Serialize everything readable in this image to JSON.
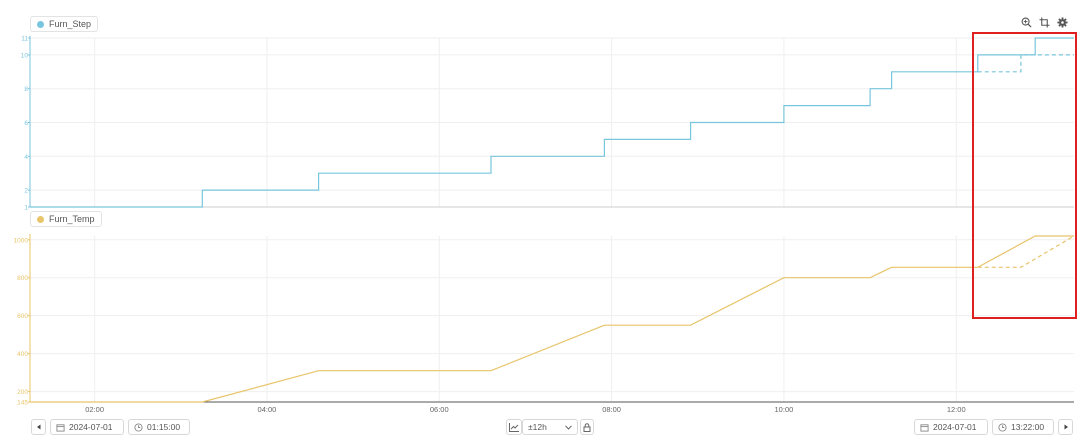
{
  "charts": {
    "top": {
      "series_name": "Furn_Step",
      "color": "#78c6dd"
    },
    "bottom": {
      "series_name": "Furn_Temp",
      "color": "#e8c46a"
    }
  },
  "toolbar": {
    "zoom_icon": "zoom-in-icon",
    "crop_icon": "crop-icon",
    "settings_icon": "gear-icon"
  },
  "controls": {
    "start_date": "2024-07-01",
    "start_time": "01:15:00",
    "range": "±12h",
    "end_date": "2024-07-01",
    "end_time": "13:22:00"
  },
  "highlight_color": "#e02020",
  "chart_data": [
    {
      "type": "line",
      "x_unit": "time",
      "x_ticks": [
        "02:00",
        "04:00",
        "06:00",
        "08:00",
        "10:00",
        "12:00"
      ],
      "x_range": [
        "01:15",
        "13:22"
      ],
      "y_ticks": [
        "1",
        "2",
        "4",
        "6",
        "8",
        "10",
        "11"
      ],
      "ylim": [
        1,
        11
      ],
      "series": [
        {
          "name": "Furn_Step",
          "style": "solid",
          "points": [
            [
              "01:15",
              1
            ],
            [
              "03:15",
              1
            ],
            [
              "03:15",
              2
            ],
            [
              "04:36",
              2
            ],
            [
              "04:36",
              3
            ],
            [
              "06:36",
              3
            ],
            [
              "06:36",
              4
            ],
            [
              "07:55",
              4
            ],
            [
              "07:55",
              5
            ],
            [
              "08:55",
              5
            ],
            [
              "08:55",
              6
            ],
            [
              "10:00",
              6
            ],
            [
              "10:00",
              7
            ],
            [
              "11:00",
              7
            ],
            [
              "11:00",
              8
            ],
            [
              "11:15",
              8
            ],
            [
              "11:15",
              9
            ],
            [
              "12:15",
              9
            ],
            [
              "12:15",
              10
            ],
            [
              "12:55",
              10
            ],
            [
              "12:55",
              11
            ],
            [
              "13:22",
              11
            ]
          ]
        },
        {
          "style": "dashed",
          "points": [
            [
              "12:15",
              9
            ],
            [
              "12:45",
              9
            ],
            [
              "12:45",
              10
            ],
            [
              "13:22",
              10
            ]
          ]
        }
      ]
    },
    {
      "type": "line",
      "x_unit": "time",
      "x_ticks": [
        "02:00",
        "04:00",
        "06:00",
        "08:00",
        "10:00",
        "12:00"
      ],
      "x_range": [
        "01:15",
        "13:22"
      ],
      "y_ticks": [
        "145",
        "200",
        "400",
        "600",
        "800",
        "1000"
      ],
      "ylim": [
        145,
        1020
      ],
      "series": [
        {
          "name": "Furn_Temp",
          "style": "solid",
          "points": [
            [
              "01:15",
              145
            ],
            [
              "03:15",
              145
            ],
            [
              "04:36",
              310
            ],
            [
              "06:36",
              310
            ],
            [
              "07:55",
              550
            ],
            [
              "08:55",
              550
            ],
            [
              "10:00",
              800
            ],
            [
              "11:00",
              800
            ],
            [
              "11:15",
              855
            ],
            [
              "12:15",
              855
            ],
            [
              "12:55",
              1020
            ],
            [
              "13:22",
              1020
            ]
          ]
        },
        {
          "style": "dashed",
          "points": [
            [
              "12:15",
              855
            ],
            [
              "12:45",
              855
            ],
            [
              "13:22",
              1020
            ]
          ]
        }
      ]
    }
  ]
}
